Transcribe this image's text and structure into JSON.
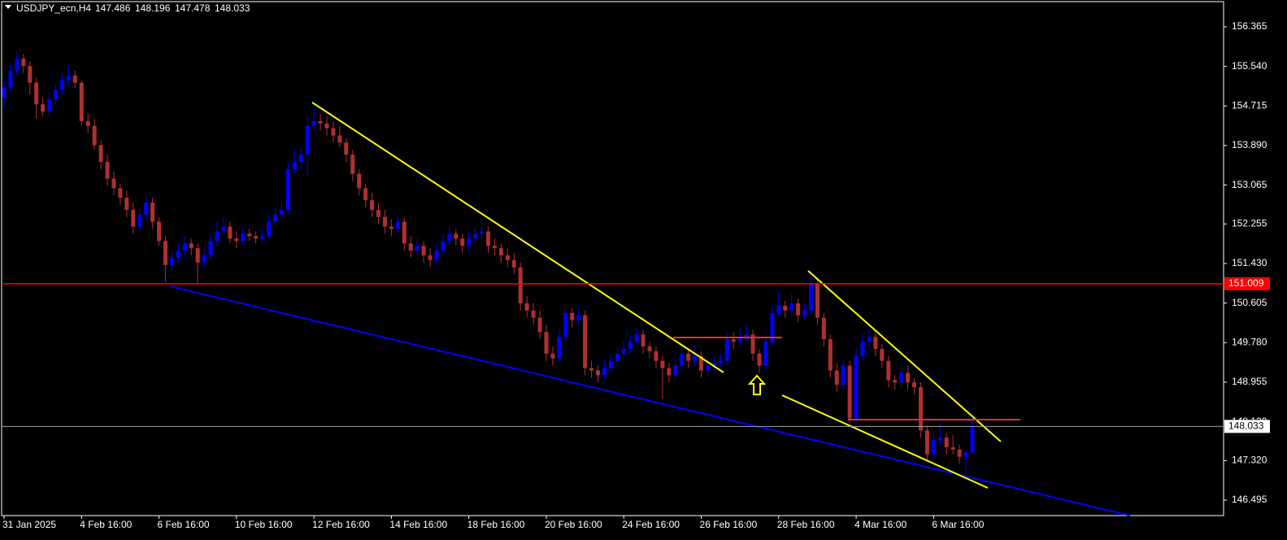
{
  "chart_data": {
    "type": "candlestick",
    "title": "USDJPY_ecn,H4",
    "bull_color": "#0000ff",
    "bear_color": "#b03030",
    "ylim": [
      146.173,
      156.891
    ],
    "yticks": [
      156.365,
      {
        "value": 155.54,
        "label": "155.540"
      },
      {
        "value": 154.715,
        "label": "154.715"
      },
      {
        "value": 153.89,
        "label": "153.890"
      },
      153.065,
      152.255,
      {
        "value": 151.43,
        "label": "151.430"
      },
      150.605,
      {
        "value": 149.78,
        "label": "149.780"
      },
      148.955,
      {
        "value": 148.13,
        "label": "148.130"
      },
      {
        "value": 147.32,
        "label": "147.320"
      },
      146.495
    ],
    "levels": [
      {
        "value": 151.009,
        "color": "#ff0000"
      }
    ],
    "x": [
      "31 Jan 2025",
      null,
      null,
      null,
      null,
      null,
      null,
      null,
      null,
      null,
      null,
      null,
      "4 Feb 16:00",
      null,
      null,
      null,
      null,
      null,
      null,
      null,
      null,
      null,
      null,
      null,
      "6 Feb 16:00",
      null,
      null,
      null,
      null,
      null,
      null,
      null,
      null,
      null,
      null,
      null,
      "10 Feb 16:00",
      null,
      null,
      null,
      null,
      null,
      null,
      null,
      null,
      null,
      null,
      null,
      "12 Feb 16:00",
      null,
      null,
      null,
      null,
      null,
      null,
      null,
      null,
      null,
      null,
      null,
      "14 Feb 16:00",
      null,
      null,
      null,
      null,
      null,
      null,
      null,
      null,
      null,
      null,
      null,
      "18 Feb 16:00",
      null,
      null,
      null,
      null,
      null,
      null,
      null,
      null,
      null,
      null,
      null,
      "20 Feb 16:00",
      null,
      null,
      null,
      null,
      null,
      null,
      null,
      null,
      null,
      null,
      null,
      "24 Feb 16:00",
      null,
      null,
      null,
      null,
      null,
      null,
      null,
      null,
      null,
      null,
      null,
      "26 Feb 16:00",
      null,
      null,
      null,
      null,
      null,
      null,
      null,
      null,
      null,
      null,
      null,
      "28 Feb 16:00",
      null,
      null,
      null,
      null,
      null,
      null,
      null,
      null,
      null,
      null,
      null,
      "4 Mar 16:00",
      null,
      null,
      null,
      null,
      null,
      null,
      null,
      null,
      null,
      null,
      null,
      "6 Mar 16:00",
      null,
      null,
      null,
      null,
      null,
      null
    ],
    "ohlc": [
      [
        154.9,
        155.25,
        154.7,
        155.1
      ],
      [
        155.1,
        155.6,
        155.0,
        155.45
      ],
      [
        155.45,
        155.85,
        155.35,
        155.7
      ],
      [
        155.7,
        155.8,
        155.4,
        155.55
      ],
      [
        155.55,
        155.65,
        154.95,
        155.2
      ],
      [
        155.2,
        155.3,
        154.45,
        154.75
      ],
      [
        154.75,
        154.9,
        154.5,
        154.6
      ],
      [
        154.6,
        155.0,
        154.5,
        154.85
      ],
      [
        154.85,
        155.15,
        154.75,
        155.05
      ],
      [
        155.05,
        155.4,
        154.95,
        155.25
      ],
      [
        155.25,
        155.55,
        155.15,
        155.35
      ],
      [
        155.35,
        155.45,
        155.1,
        155.2
      ],
      [
        155.2,
        155.25,
        154.3,
        154.4
      ],
      [
        154.4,
        154.55,
        154.15,
        154.3
      ],
      [
        154.3,
        154.45,
        153.8,
        153.9
      ],
      [
        153.9,
        154.0,
        153.4,
        153.55
      ],
      [
        153.55,
        153.7,
        153.05,
        153.2
      ],
      [
        153.2,
        153.35,
        152.85,
        153.0
      ],
      [
        153.0,
        153.1,
        152.65,
        152.8
      ],
      [
        152.8,
        152.95,
        152.4,
        152.55
      ],
      [
        152.55,
        152.7,
        152.05,
        152.2
      ],
      [
        152.2,
        152.6,
        152.1,
        152.45
      ],
      [
        152.45,
        152.85,
        152.35,
        152.7
      ],
      [
        152.7,
        152.8,
        152.15,
        152.3
      ],
      [
        152.3,
        152.4,
        151.8,
        151.9
      ],
      [
        151.9,
        152.0,
        151.05,
        151.4
      ],
      [
        151.4,
        151.7,
        151.3,
        151.55
      ],
      [
        151.55,
        151.85,
        151.45,
        151.7
      ],
      [
        151.7,
        152.0,
        151.6,
        151.85
      ],
      [
        151.85,
        151.95,
        151.6,
        151.75
      ],
      [
        151.75,
        151.85,
        151.0,
        151.45
      ],
      [
        151.45,
        151.75,
        151.35,
        151.6
      ],
      [
        151.6,
        152.05,
        151.5,
        151.9
      ],
      [
        151.9,
        152.3,
        151.8,
        152.1
      ],
      [
        152.1,
        152.4,
        152.0,
        152.2
      ],
      [
        152.2,
        152.3,
        151.85,
        151.95
      ],
      [
        151.95,
        152.1,
        151.75,
        151.9
      ],
      [
        151.9,
        152.2,
        151.8,
        152.05
      ],
      [
        152.05,
        152.15,
        151.9,
        152.0
      ],
      [
        152.0,
        152.1,
        151.85,
        151.95
      ],
      [
        151.95,
        152.15,
        151.85,
        152.0
      ],
      [
        152.0,
        152.45,
        151.95,
        152.3
      ],
      [
        152.3,
        152.6,
        152.2,
        152.45
      ],
      [
        152.45,
        152.7,
        152.35,
        152.55
      ],
      [
        152.55,
        153.55,
        152.45,
        153.4
      ],
      [
        153.4,
        153.8,
        153.3,
        153.55
      ],
      [
        153.55,
        153.85,
        153.4,
        153.7
      ],
      [
        153.7,
        154.5,
        153.25,
        154.3
      ],
      [
        154.3,
        154.75,
        154.2,
        154.4
      ],
      [
        154.4,
        154.55,
        154.2,
        154.35
      ],
      [
        154.35,
        154.5,
        154.1,
        154.25
      ],
      [
        154.25,
        154.4,
        153.95,
        154.1
      ],
      [
        154.1,
        154.3,
        153.85,
        153.95
      ],
      [
        153.95,
        154.05,
        153.55,
        153.7
      ],
      [
        153.7,
        153.8,
        153.15,
        153.3
      ],
      [
        153.3,
        153.4,
        152.85,
        153.0
      ],
      [
        153.0,
        153.1,
        152.6,
        152.75
      ],
      [
        152.75,
        152.9,
        152.4,
        152.55
      ],
      [
        152.55,
        152.7,
        152.25,
        152.4
      ],
      [
        152.4,
        152.55,
        152.05,
        152.2
      ],
      [
        152.2,
        152.35,
        152.0,
        152.15
      ],
      [
        152.15,
        152.45,
        152.05,
        152.3
      ],
      [
        152.3,
        152.4,
        151.7,
        151.85
      ],
      [
        151.85,
        152.0,
        151.55,
        151.7
      ],
      [
        151.7,
        151.95,
        151.6,
        151.8
      ],
      [
        151.8,
        151.9,
        151.45,
        151.6
      ],
      [
        151.6,
        151.75,
        151.35,
        151.5
      ],
      [
        151.5,
        151.85,
        151.4,
        151.7
      ],
      [
        151.7,
        152.05,
        151.6,
        151.9
      ],
      [
        151.9,
        152.2,
        151.8,
        152.05
      ],
      [
        152.05,
        152.15,
        151.8,
        151.95
      ],
      [
        151.95,
        152.05,
        151.65,
        151.8
      ],
      [
        151.8,
        152.1,
        151.7,
        151.95
      ],
      [
        151.95,
        152.2,
        151.85,
        152.05
      ],
      [
        152.05,
        152.35,
        151.95,
        152.1
      ],
      [
        152.1,
        152.2,
        151.65,
        151.8
      ],
      [
        151.8,
        151.95,
        151.6,
        151.75
      ],
      [
        151.75,
        151.85,
        151.45,
        151.6
      ],
      [
        151.6,
        151.75,
        151.35,
        151.5
      ],
      [
        151.5,
        151.65,
        151.2,
        151.35
      ],
      [
        151.35,
        151.45,
        150.45,
        150.6
      ],
      [
        150.6,
        150.75,
        150.3,
        150.45
      ],
      [
        150.45,
        150.6,
        150.15,
        150.3
      ],
      [
        150.3,
        150.45,
        149.85,
        150.0
      ],
      [
        150.0,
        150.15,
        149.4,
        149.55
      ],
      [
        149.55,
        149.7,
        149.3,
        149.45
      ],
      [
        149.45,
        150.05,
        149.35,
        149.9
      ],
      [
        149.9,
        150.55,
        149.8,
        150.4
      ],
      [
        150.4,
        150.5,
        150.1,
        150.25
      ],
      [
        150.25,
        150.5,
        150.15,
        150.35
      ],
      [
        150.35,
        150.45,
        149.1,
        149.25
      ],
      [
        149.25,
        149.4,
        149.05,
        149.2
      ],
      [
        149.2,
        149.3,
        148.95,
        149.1
      ],
      [
        149.1,
        149.4,
        149.0,
        149.25
      ],
      [
        149.25,
        149.55,
        149.15,
        149.4
      ],
      [
        149.4,
        149.7,
        149.3,
        149.55
      ],
      [
        149.55,
        149.8,
        149.45,
        149.65
      ],
      [
        149.65,
        149.95,
        149.55,
        149.8
      ],
      [
        149.8,
        150.1,
        149.7,
        149.95
      ],
      [
        149.95,
        150.05,
        149.55,
        149.7
      ],
      [
        149.7,
        149.8,
        149.45,
        149.6
      ],
      [
        149.6,
        149.7,
        149.25,
        149.4
      ],
      [
        149.4,
        149.5,
        148.6,
        149.25
      ],
      [
        149.25,
        149.35,
        148.95,
        149.1
      ],
      [
        149.1,
        149.45,
        149.0,
        149.3
      ],
      [
        149.3,
        149.7,
        149.2,
        149.55
      ],
      [
        149.55,
        149.65,
        149.25,
        149.4
      ],
      [
        149.4,
        149.7,
        149.3,
        149.5
      ],
      [
        149.5,
        149.6,
        149.05,
        149.2
      ],
      [
        149.2,
        149.45,
        149.1,
        149.3
      ],
      [
        149.3,
        149.5,
        149.2,
        149.35
      ],
      [
        149.35,
        149.55,
        149.25,
        149.4
      ],
      [
        149.4,
        150.0,
        149.3,
        149.85
      ],
      [
        149.85,
        150.0,
        149.65,
        149.8
      ],
      [
        149.8,
        150.1,
        149.7,
        149.9
      ],
      [
        149.9,
        150.15,
        149.8,
        149.95
      ],
      [
        149.95,
        150.05,
        149.4,
        149.55
      ],
      [
        149.55,
        149.65,
        149.15,
        149.3
      ],
      [
        149.3,
        149.95,
        149.2,
        149.8
      ],
      [
        149.8,
        150.55,
        149.7,
        150.4
      ],
      [
        150.4,
        150.85,
        150.3,
        150.55
      ],
      [
        150.55,
        150.65,
        150.3,
        150.45
      ],
      [
        150.45,
        150.8,
        150.35,
        150.6
      ],
      [
        150.6,
        150.7,
        150.2,
        150.35
      ],
      [
        150.35,
        150.6,
        150.25,
        150.45
      ],
      [
        150.45,
        151.15,
        150.35,
        151.0
      ],
      [
        151.0,
        151.1,
        150.15,
        150.3
      ],
      [
        150.3,
        150.4,
        149.7,
        149.85
      ],
      [
        149.85,
        149.95,
        149.05,
        149.2
      ],
      [
        149.2,
        149.35,
        148.75,
        148.9
      ],
      [
        148.9,
        149.45,
        148.8,
        149.3
      ],
      [
        149.3,
        149.4,
        148.1,
        148.2
      ],
      [
        148.2,
        149.65,
        148.1,
        149.5
      ],
      [
        149.5,
        149.95,
        149.4,
        149.8
      ],
      [
        149.8,
        150.05,
        149.7,
        149.9
      ],
      [
        149.9,
        150.0,
        149.5,
        149.65
      ],
      [
        149.65,
        149.75,
        149.25,
        149.4
      ],
      [
        149.4,
        149.5,
        148.85,
        149.0
      ],
      [
        149.0,
        149.1,
        148.8,
        148.95
      ],
      [
        148.95,
        149.3,
        148.85,
        149.15
      ],
      [
        149.15,
        149.3,
        148.8,
        148.95
      ],
      [
        148.95,
        149.05,
        148.7,
        148.85
      ],
      [
        148.85,
        148.95,
        147.8,
        147.95
      ],
      [
        147.95,
        148.05,
        147.3,
        147.45
      ],
      [
        147.45,
        147.9,
        147.35,
        147.75
      ],
      [
        147.75,
        148.1,
        147.65,
        147.8
      ],
      [
        147.8,
        147.9,
        147.45,
        147.6
      ],
      [
        147.6,
        147.85,
        147.45,
        147.55
      ],
      [
        147.55,
        147.65,
        147.25,
        147.4
      ],
      [
        147.4,
        147.55,
        147.1,
        147.49
      ],
      [
        147.486,
        148.196,
        147.478,
        148.033
      ]
    ]
  }
}
